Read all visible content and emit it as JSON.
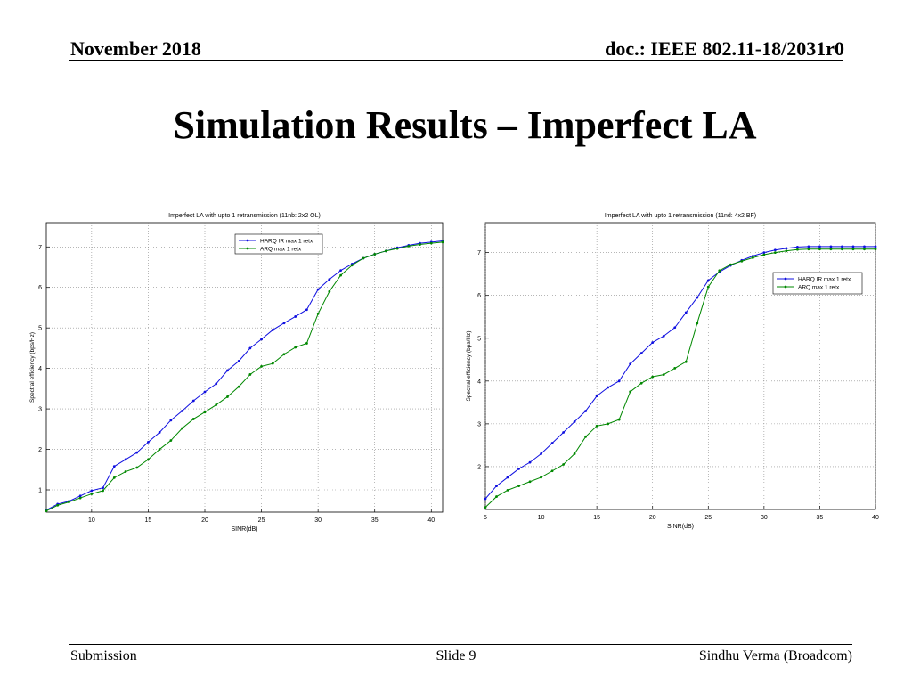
{
  "header": {
    "date": "November 2018",
    "doc": "doc.: IEEE 802.11-18/2031r0"
  },
  "title": "Simulation Results – Imperfect LA",
  "footer": {
    "left": "Submission",
    "center": "Slide 9",
    "right": "Sindhu Verma (Broadcom)"
  },
  "colors": {
    "harq": "#1010e0",
    "arq": "#008800",
    "grid": "#8a8a8a"
  },
  "chart_data": [
    {
      "type": "line",
      "title": "Imperfect LA with upto 1 retransmission (11nb: 2x2 OL)",
      "xlabel": "SINR(dB)",
      "ylabel": "Spectral efficiency (bps/Hz)",
      "xlim": [
        6,
        41
      ],
      "ylim": [
        0.45,
        7.6
      ],
      "xticks": [
        10,
        15,
        20,
        25,
        30,
        35,
        40
      ],
      "yticks": [
        1,
        2,
        3,
        4,
        5,
        6,
        7
      ],
      "grid": true,
      "legend_position": "top-right",
      "series": [
        {
          "name": "HARQ IR max 1 retx",
          "color": "#1010e0",
          "x": [
            6,
            7,
            8,
            9,
            10,
            11,
            12,
            13,
            14,
            15,
            16,
            17,
            18,
            19,
            20,
            21,
            22,
            23,
            24,
            25,
            26,
            27,
            28,
            29,
            30,
            31,
            32,
            33,
            34,
            35,
            36,
            37,
            38,
            39,
            40,
            41
          ],
          "y": [
            0.5,
            0.65,
            0.72,
            0.85,
            0.98,
            1.05,
            1.58,
            1.75,
            1.92,
            2.18,
            2.42,
            2.72,
            2.95,
            3.2,
            3.42,
            3.62,
            3.95,
            4.18,
            4.5,
            4.72,
            4.95,
            5.12,
            5.28,
            5.45,
            5.95,
            6.2,
            6.42,
            6.58,
            6.72,
            6.82,
            6.9,
            6.98,
            7.04,
            7.09,
            7.12,
            7.15
          ]
        },
        {
          "name": "ARQ max 1 retx",
          "color": "#008800",
          "x": [
            6,
            7,
            8,
            9,
            10,
            11,
            12,
            13,
            14,
            15,
            16,
            17,
            18,
            19,
            20,
            21,
            22,
            23,
            24,
            25,
            26,
            27,
            28,
            29,
            30,
            31,
            32,
            33,
            34,
            35,
            36,
            37,
            38,
            39,
            40,
            41
          ],
          "y": [
            0.48,
            0.62,
            0.7,
            0.8,
            0.9,
            0.98,
            1.3,
            1.45,
            1.55,
            1.75,
            2.0,
            2.22,
            2.52,
            2.75,
            2.92,
            3.1,
            3.3,
            3.55,
            3.85,
            4.05,
            4.12,
            4.35,
            4.52,
            4.62,
            5.35,
            5.9,
            6.3,
            6.55,
            6.72,
            6.82,
            6.9,
            6.96,
            7.02,
            7.06,
            7.09,
            7.12
          ]
        }
      ]
    },
    {
      "type": "line",
      "title": "Imperfect LA with upto 1 retransmission (11nd: 4x2 BF)",
      "xlabel": "SINR(dB)",
      "ylabel": "Spectral efficiency (bps/Hz)",
      "xlim": [
        5,
        40
      ],
      "ylim": [
        1.0,
        7.7
      ],
      "xticks": [
        5,
        10,
        15,
        20,
        25,
        30,
        35,
        40
      ],
      "yticks": [
        2,
        3,
        4,
        5,
        6,
        7
      ],
      "grid": true,
      "legend_position": "right",
      "series": [
        {
          "name": "HARQ IR max 1 retx",
          "color": "#1010e0",
          "x": [
            5,
            6,
            7,
            8,
            9,
            10,
            11,
            12,
            13,
            14,
            15,
            16,
            17,
            18,
            19,
            20,
            21,
            22,
            23,
            24,
            25,
            26,
            27,
            28,
            29,
            30,
            31,
            32,
            33,
            34,
            35,
            36,
            37,
            38,
            39,
            40
          ],
          "y": [
            1.25,
            1.55,
            1.75,
            1.95,
            2.1,
            2.3,
            2.55,
            2.8,
            3.05,
            3.3,
            3.65,
            3.85,
            4.0,
            4.4,
            4.65,
            4.9,
            5.05,
            5.25,
            5.6,
            5.95,
            6.35,
            6.55,
            6.7,
            6.82,
            6.92,
            7.0,
            7.06,
            7.1,
            7.13,
            7.14,
            7.14,
            7.14,
            7.14,
            7.14,
            7.14,
            7.14
          ]
        },
        {
          "name": "ARQ max 1 retx",
          "color": "#008800",
          "x": [
            5,
            6,
            7,
            8,
            9,
            10,
            11,
            12,
            13,
            14,
            15,
            16,
            17,
            18,
            19,
            20,
            21,
            22,
            23,
            24,
            25,
            26,
            27,
            28,
            29,
            30,
            31,
            32,
            33,
            34,
            35,
            36,
            37,
            38,
            39,
            40
          ],
          "y": [
            1.05,
            1.3,
            1.45,
            1.55,
            1.65,
            1.75,
            1.9,
            2.05,
            2.3,
            2.7,
            2.95,
            3.0,
            3.1,
            3.75,
            3.95,
            4.1,
            4.15,
            4.3,
            4.45,
            5.35,
            6.2,
            6.58,
            6.72,
            6.8,
            6.88,
            6.95,
            7.0,
            7.04,
            7.07,
            7.08,
            7.08,
            7.08,
            7.08,
            7.08,
            7.08,
            7.08
          ]
        }
      ]
    }
  ]
}
